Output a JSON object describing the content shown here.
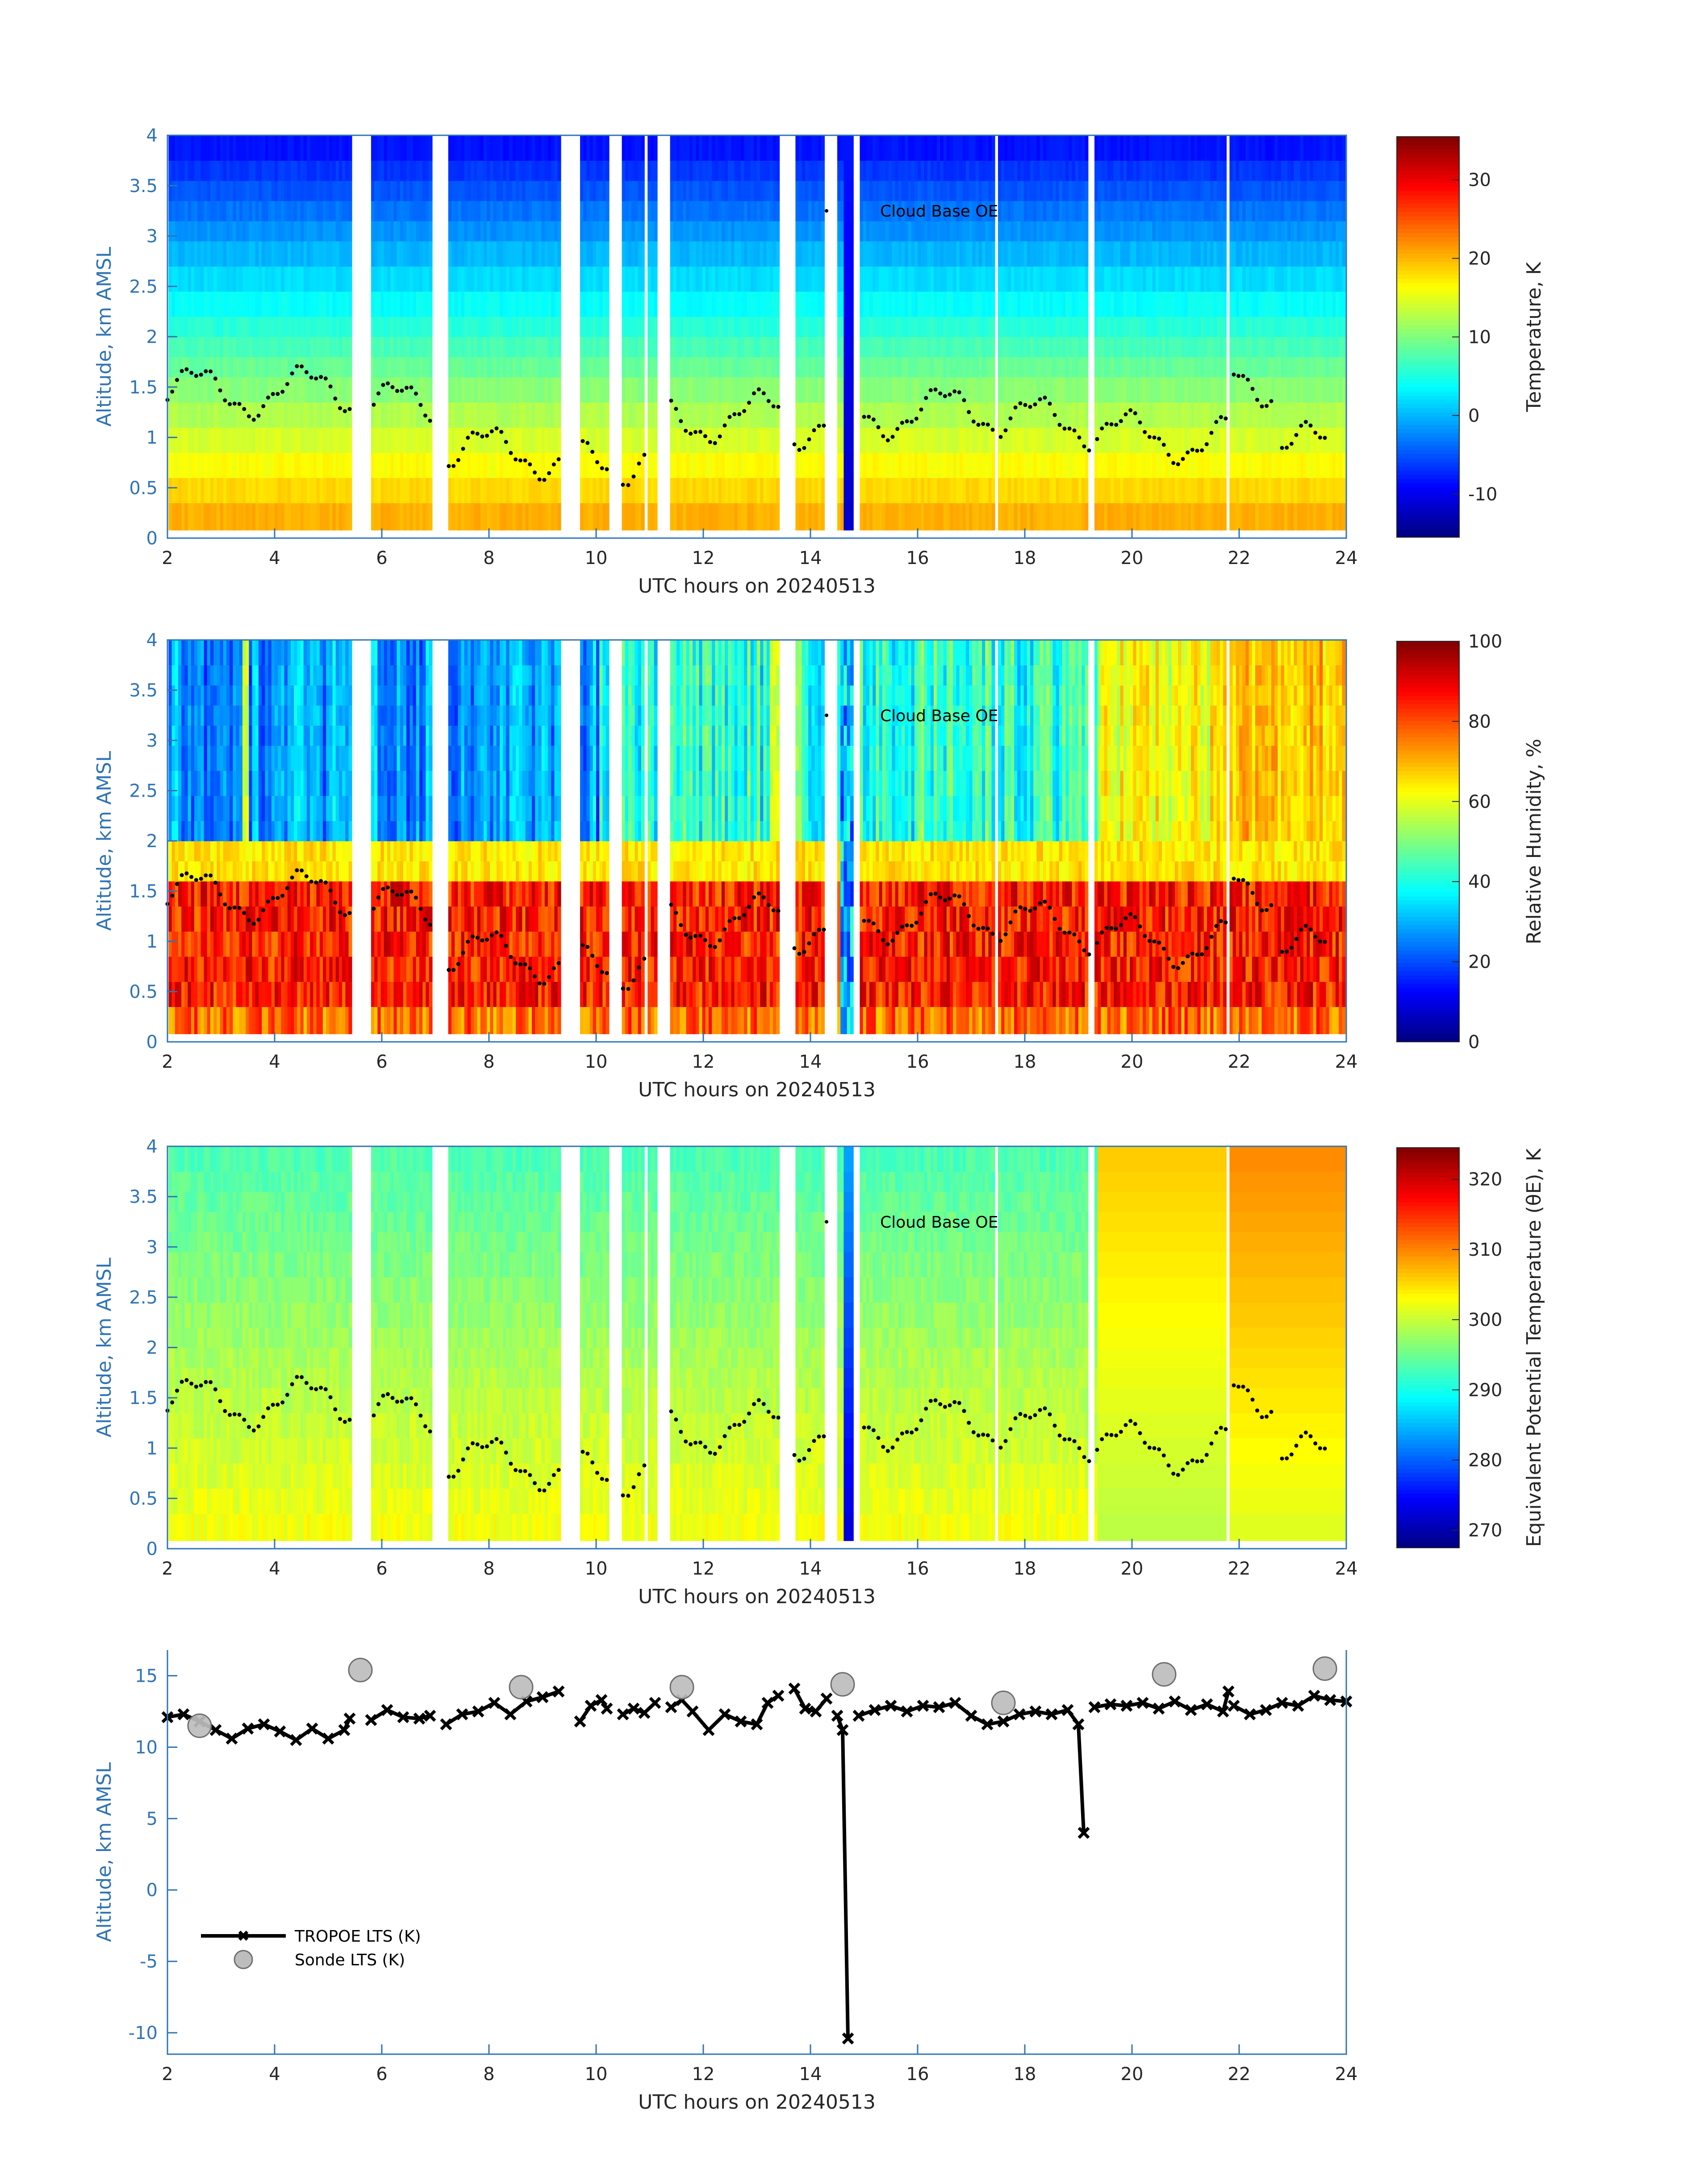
{
  "figure": {
    "background": "#ffffff",
    "axis_color": "#2f74b5",
    "mark_color": "#000000"
  },
  "chart_data": [
    {
      "type": "heatmap",
      "panel": "temperature",
      "xlabel": "UTC hours on 20240513",
      "ylabel": "Altitude, km AMSL",
      "xlim": [
        2,
        24
      ],
      "ylim": [
        0,
        4
      ],
      "xticks": [
        "2",
        "4",
        "6",
        "8",
        "10",
        "12",
        "14",
        "16",
        "18",
        "20",
        "22",
        "24"
      ],
      "yticks": [
        "0",
        "0.5",
        "1",
        "1.5",
        "2",
        "2.5",
        "3",
        "3.5",
        "4"
      ],
      "colorbar": {
        "label": "Temperature, K",
        "range": [
          -15.5,
          35.5
        ],
        "ticks": [
          "-10",
          "0",
          "10",
          "20",
          "30"
        ]
      },
      "annotation": "Cloud Base OE",
      "grid": false
    },
    {
      "type": "heatmap",
      "panel": "relative-humidity",
      "xlabel": "UTC hours on 20240513",
      "ylabel": "Altitude, km AMSL",
      "xlim": [
        2,
        24
      ],
      "ylim": [
        0,
        4
      ],
      "xticks": [
        "2",
        "4",
        "6",
        "8",
        "10",
        "12",
        "14",
        "16",
        "18",
        "20",
        "22",
        "24"
      ],
      "yticks": [
        "0",
        "0.5",
        "1",
        "1.5",
        "2",
        "2.5",
        "3",
        "3.5",
        "4"
      ],
      "colorbar": {
        "label": "Relative Humidity, %",
        "range": [
          0,
          100
        ],
        "ticks": [
          "0",
          "20",
          "40",
          "60",
          "80",
          "100"
        ]
      },
      "annotation": "Cloud Base OE",
      "grid": false
    },
    {
      "type": "heatmap",
      "panel": "equivalent-potential-temperature",
      "xlabel": "UTC hours on 20240513",
      "ylabel": "Altitude, km AMSL",
      "xlim": [
        2,
        24
      ],
      "ylim": [
        0,
        4
      ],
      "xticks": [
        "2",
        "4",
        "6",
        "8",
        "10",
        "12",
        "14",
        "16",
        "18",
        "20",
        "22",
        "24"
      ],
      "yticks": [
        "0",
        "0.5",
        "1",
        "1.5",
        "2",
        "2.5",
        "3",
        "3.5",
        "4"
      ],
      "colorbar": {
        "label": "Equivalent Potential Temperature (θE), K",
        "range": [
          267.5,
          324.5
        ],
        "ticks": [
          "270",
          "280",
          "290",
          "300",
          "310",
          "320"
        ]
      },
      "annotation": "Cloud Base OE",
      "grid": false
    },
    {
      "type": "line",
      "panel": "lts",
      "xlabel": "UTC hours on 20240513",
      "ylabel": "Altitude, km AMSL",
      "xlim": [
        2,
        24
      ],
      "ylim": [
        -11.5,
        16.8
      ],
      "xticks": [
        "2",
        "4",
        "6",
        "8",
        "10",
        "12",
        "14",
        "16",
        "18",
        "20",
        "22",
        "24"
      ],
      "yticks": [
        "-10",
        "-5",
        "0",
        "5",
        "10",
        "15"
      ],
      "legend_position": "lower-left",
      "series": [
        {
          "name": "TROPOE LTS (K)",
          "marker": "x",
          "line": "solid",
          "segments": [
            {
              "x": [
                2.0,
                2.3,
                2.6,
                2.9,
                3.2,
                3.5,
                3.8,
                4.1,
                4.4,
                4.7,
                5.0,
                5.3,
                5.4
              ],
              "y": [
                12.1,
                12.3,
                11.8,
                11.2,
                10.6,
                11.3,
                11.6,
                11.1,
                10.5,
                11.3,
                10.6,
                11.2,
                12.0
              ]
            },
            {
              "x": [
                5.8,
                6.1,
                6.4,
                6.7,
                6.9
              ],
              "y": [
                11.9,
                12.6,
                12.1,
                12.0,
                12.2
              ]
            },
            {
              "x": [
                7.2,
                7.5,
                7.8,
                8.1,
                8.4,
                8.7,
                9.0,
                9.3
              ],
              "y": [
                11.6,
                12.3,
                12.5,
                13.1,
                12.3,
                13.2,
                13.5,
                13.9
              ]
            },
            {
              "x": [
                9.7,
                9.9,
                10.1,
                10.2
              ],
              "y": [
                11.8,
                12.9,
                13.3,
                12.7
              ]
            },
            {
              "x": [
                10.5,
                10.7,
                10.9,
                11.1
              ],
              "y": [
                12.3,
                12.7,
                12.4,
                13.1
              ]
            },
            {
              "x": [
                11.4,
                11.6,
                11.8,
                12.1,
                12.4,
                12.7,
                13.0,
                13.2,
                13.4
              ],
              "y": [
                12.8,
                13.3,
                12.5,
                11.2,
                12.3,
                11.8,
                11.6,
                13.1,
                13.6
              ]
            },
            {
              "x": [
                13.7,
                13.9,
                14.1,
                14.3
              ],
              "y": [
                14.1,
                12.7,
                12.5,
                13.4
              ]
            },
            {
              "x": [
                14.5,
                14.6,
                14.7
              ],
              "y": [
                12.2,
                11.2,
                -10.4
              ]
            },
            {
              "x": [
                14.9,
                15.2,
                15.5,
                15.8,
                16.1,
                16.4,
                16.7,
                17.0,
                17.3,
                17.6,
                17.9,
                18.2,
                18.5,
                18.8,
                19.0,
                19.1
              ],
              "y": [
                12.2,
                12.6,
                12.9,
                12.5,
                12.9,
                12.8,
                13.1,
                12.2,
                11.6,
                11.8,
                12.3,
                12.5,
                12.3,
                12.6,
                11.6,
                4.0
              ]
            },
            {
              "x": [
                19.3,
                19.6,
                19.9,
                20.2,
                20.5,
                20.8,
                21.1,
                21.4,
                21.7,
                21.8
              ],
              "y": [
                12.8,
                13.0,
                12.9,
                13.1,
                12.7,
                13.2,
                12.6,
                13.0,
                12.5,
                13.9
              ]
            },
            {
              "x": [
                21.9,
                22.2,
                22.5,
                22.8,
                23.1,
                23.4,
                23.7,
                24.0
              ],
              "y": [
                12.9,
                12.3,
                12.6,
                13.1,
                12.9,
                13.6,
                13.3,
                13.2
              ]
            }
          ]
        },
        {
          "name": "Sonde LTS (K)",
          "marker": "o",
          "x": [
            2.6,
            5.6,
            8.6,
            11.6,
            14.6,
            17.6,
            20.6,
            23.6
          ],
          "y": [
            11.5,
            15.4,
            14.2,
            14.2,
            14.4,
            13.1,
            15.1,
            15.5
          ]
        }
      ]
    }
  ]
}
